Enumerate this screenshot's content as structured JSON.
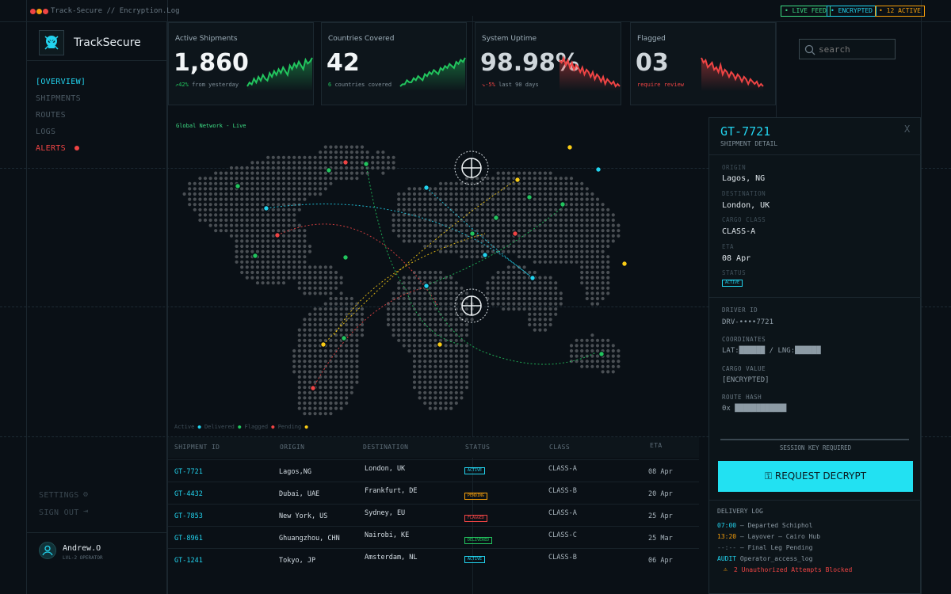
{
  "window": {
    "title": "Track-Secure // Encryption.Log",
    "badges": [
      {
        "label": "• LIVE FEED",
        "color": "#3ddc84"
      },
      {
        "label": "• ENCRYPTED",
        "color": "#22d3ee"
      },
      {
        "label": "• 12 ACTIVE",
        "color": "#f59e0b"
      }
    ]
  },
  "brand": {
    "name": "TrackSecure",
    "icon": "skull-icon"
  },
  "nav": {
    "items": [
      {
        "label": "[OVERVIEW]",
        "color": "#22d3ee"
      },
      {
        "label": "SHIPMENTS",
        "color": "#4b5963"
      },
      {
        "label": "ROUTES",
        "color": "#4b5963"
      },
      {
        "label": "LOGS",
        "color": "#4b5963"
      },
      {
        "label": "ALERTS",
        "color": "#ef4444"
      }
    ],
    "settings": "SETTINGS",
    "signout": "SIGN OUT"
  },
  "user": {
    "name": "Andrew.O",
    "role": "LVL-2 OPERATOR"
  },
  "search": {
    "placeholder": "search"
  },
  "stats": [
    {
      "label": "Active Shipments",
      "value": "1,860",
      "delta": "42%",
      "sub": "from yesterday",
      "trend": "up",
      "series": [
        3,
        5,
        4,
        7,
        5,
        8,
        6,
        9,
        7,
        6,
        10,
        8,
        11,
        9,
        12,
        10,
        13,
        11,
        9,
        14,
        12,
        15,
        13,
        16,
        14,
        12,
        17,
        15,
        16,
        18
      ]
    },
    {
      "label": "Countries Covered",
      "value": "42",
      "delta": "6",
      "sub": "countries covered",
      "trend": "up",
      "series": [
        2,
        3,
        3,
        5,
        4,
        4,
        6,
        5,
        7,
        6,
        5,
        8,
        7,
        9,
        8,
        10,
        9,
        8,
        11,
        10,
        12,
        11,
        13,
        12,
        11,
        14,
        13,
        15,
        14,
        16
      ]
    },
    {
      "label": "System Uptime",
      "value": "98.98%",
      "delta": "-5%",
      "sub": "last 90 days",
      "trend": "down",
      "series": [
        15,
        14,
        16,
        13,
        15,
        12,
        14,
        11,
        13,
        12,
        10,
        12,
        9,
        11,
        10,
        8,
        10,
        7,
        9,
        8,
        6,
        8,
        5,
        7,
        6,
        5,
        6,
        4,
        5,
        4
      ]
    },
    {
      "label": "Flagged",
      "value": "03",
      "delta": "",
      "sub": "require review",
      "trend": "down",
      "series": [
        16,
        14,
        15,
        12,
        13,
        14,
        11,
        12,
        10,
        13,
        9,
        11,
        10,
        8,
        10,
        9,
        7,
        9,
        8,
        6,
        8,
        7,
        5,
        7,
        6,
        5,
        6,
        4,
        5,
        4
      ]
    }
  ],
  "map": {
    "title": "Global Network - Live",
    "legend": [
      {
        "label": "Active",
        "color": "#22d3ee"
      },
      {
        "label": "Delivered",
        "color": "#22c55e"
      },
      {
        "label": "Flagged",
        "color": "#ef4444"
      },
      {
        "label": "Pending",
        "color": "#facc15"
      }
    ]
  },
  "table": {
    "headers": [
      "SHIPMENT ID",
      "ORIGIN",
      "DESTINATION",
      "STATUS",
      "CLASS",
      "ETA"
    ],
    "rows": [
      {
        "id": "GT-7721",
        "origin": "Lagos,NG",
        "dest": "London, UK",
        "status": "ACTIVE",
        "cls": "CLASS-A",
        "eta": "08 Apr"
      },
      {
        "id": "GT-4432",
        "origin": "Dubai, UAE",
        "dest": "Frankfurt, DE",
        "status": "PENDING",
        "cls": "CLASS-B",
        "eta": "20 Apr"
      },
      {
        "id": "GT-7853",
        "origin": "New York, US",
        "dest": "Sydney, EU",
        "status": "FLAGGED",
        "cls": "CLASS-A",
        "eta": "25 Apr"
      },
      {
        "id": "GT-8961",
        "origin": "Ghuangzhou, CHN",
        "dest": "Nairobi, KE",
        "status": "DELIVERED",
        "cls": "CLASS-C",
        "eta": "25 Mar"
      },
      {
        "id": "GT-1241",
        "origin": "Tokyo, JP",
        "dest": "Amsterdam, NL",
        "status": "ACTIVE",
        "cls": "CLASS-B",
        "eta": "06 Apr"
      }
    ]
  },
  "statusColors": {
    "ACTIVE": "#22d3ee",
    "PENDING": "#f59e0b",
    "FLAGGED": "#ef4444",
    "DELIVERED": "#22c55e"
  },
  "detail": {
    "id": "GT-7721",
    "subtitle": "SHIPMENT DETAIL",
    "close": "X",
    "origin_label": "ORIGIN",
    "origin": "Lagos, NG",
    "dest_label": "DESTINATION",
    "dest": "London, UK",
    "class_label": "CARGO CLASS",
    "cls": "CLASS-A",
    "eta_label": "ETA",
    "eta": "08 Apr",
    "status_label": "STATUS",
    "status": "ACTIVE",
    "driver_label": "DRIVER ID",
    "driver": "DRV-••••7721",
    "coords_label": "COORDINATES",
    "coords": "LAT:██████ / LNG:██████",
    "value_label": "CARGO VALUE",
    "value": "[ENCRYPTED]",
    "hash_label": "ROUTE HASH",
    "hash": "0x ████████████",
    "session": "SESSION KEY REQUIRED",
    "button": "REQUEST DECRYPT",
    "log_title": "DELIVERY LOG",
    "log": [
      {
        "time": "07:00",
        "text": " — Departed Schiphol",
        "color": "#22d3ee"
      },
      {
        "time": "13:20",
        "text": " — Layover — Cairo Hub",
        "color": "#f59e0b"
      },
      {
        "time": "--:--",
        "text": " — Final Leg Pending",
        "color": "#6b7a85"
      },
      {
        "time": "AUDIT",
        "text": " Operator_access_log",
        "color": "#22d3ee"
      }
    ],
    "alert": "2 Unauthorized Attempts Blocked"
  }
}
